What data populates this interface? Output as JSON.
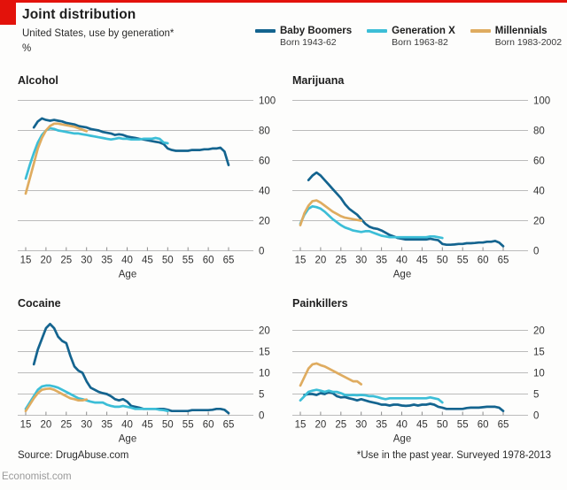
{
  "header": {
    "title": "Joint distribution",
    "subtitle": "United States, use by generation*",
    "unit_label": "%"
  },
  "legend": [
    {
      "name": "Baby Boomers",
      "born": "Born 1943-62",
      "color": "#14648F"
    },
    {
      "name": "Generation X",
      "born": "Born 1963-82",
      "color": "#3CBED7"
    },
    {
      "name": "Millennials",
      "born": "Born 1983-2002",
      "color": "#DFAC60"
    }
  ],
  "colors": {
    "accent_red": "#E3120B",
    "grid": "#BBBBBB",
    "axis": "#8C8C8C",
    "text": "#1E1E1E"
  },
  "footer": {
    "source": "Source: DrugAbuse.com",
    "note": "*Use in the past year. Surveyed 1978-2013",
    "site": "Economist.com"
  },
  "chart_data": [
    {
      "type": "line",
      "title": "Alcohol",
      "xlabel": "Age",
      "xlim": [
        15,
        70
      ],
      "ylim": [
        0,
        100
      ],
      "xticks": [
        15,
        20,
        25,
        30,
        35,
        40,
        45,
        50,
        55,
        60,
        65
      ],
      "yticks": [
        0,
        20,
        40,
        60,
        80,
        100
      ],
      "grid": true,
      "legend_position": "top-right-shared",
      "series": [
        {
          "name": "Baby Boomers",
          "start_age": 17,
          "values": [
            82,
            86,
            88,
            87,
            86.5,
            87,
            86.5,
            86,
            85,
            84.5,
            84,
            83,
            82.5,
            82,
            81,
            80.5,
            80,
            79,
            78.5,
            78,
            77,
            77.5,
            77,
            76,
            75.5,
            75,
            74.5,
            74,
            73.5,
            73,
            72.5,
            72,
            71,
            68,
            67,
            66.5,
            66.5,
            66.5,
            66.5,
            67,
            67,
            67,
            67.5,
            67.5,
            68,
            68,
            68.5,
            66,
            57
          ]
        },
        {
          "name": "Generation X",
          "start_age": 15,
          "values": [
            48,
            57,
            65,
            72,
            77,
            80,
            81.5,
            81,
            80,
            79.5,
            79,
            78.5,
            78,
            78,
            77.5,
            77,
            76.5,
            76,
            75.5,
            75,
            74.5,
            74,
            74.5,
            75,
            74.5,
            74.5,
            74,
            74,
            74,
            74.5,
            74.5,
            74.5,
            75,
            74.5,
            72,
            71.5
          ]
        },
        {
          "name": "Millennials",
          "start_age": 15,
          "values": [
            38,
            48,
            58,
            68,
            75,
            80,
            83,
            84.5,
            84.5,
            84,
            83.5,
            83,
            82.5,
            81.5,
            80.5,
            79.5
          ]
        }
      ]
    },
    {
      "type": "line",
      "title": "Marijuana",
      "xlabel": "Age",
      "xlim": [
        15,
        70
      ],
      "ylim": [
        0,
        100
      ],
      "xticks": [
        15,
        20,
        25,
        30,
        35,
        40,
        45,
        50,
        55,
        60,
        65
      ],
      "yticks": [
        0,
        20,
        40,
        60,
        80,
        100
      ],
      "grid": true,
      "legend_position": "top-right-shared",
      "series": [
        {
          "name": "Baby Boomers",
          "start_age": 17,
          "values": [
            47,
            50,
            52,
            50,
            47,
            44,
            41,
            38,
            35,
            31,
            28,
            26,
            24,
            21,
            18,
            16,
            15,
            14.5,
            13.5,
            12,
            10.5,
            9.5,
            8.5,
            8,
            7.5,
            7.5,
            7.5,
            7.5,
            7.5,
            7.5,
            8,
            7.5,
            7,
            4.5,
            4,
            4,
            4.2,
            4.5,
            4.5,
            5,
            5,
            5.2,
            5.5,
            5.5,
            6,
            6,
            6.5,
            5.5,
            3
          ]
        },
        {
          "name": "Generation X",
          "start_age": 15,
          "values": [
            18,
            24,
            28,
            29.5,
            29,
            28,
            26,
            23.5,
            21,
            19,
            17,
            15.5,
            14.5,
            13.5,
            13,
            12.5,
            13,
            13,
            12,
            11,
            10,
            9.5,
            9,
            9,
            9,
            9,
            9,
            9,
            9,
            9,
            9,
            9,
            9.5,
            9.5,
            9,
            8.5
          ]
        },
        {
          "name": "Millennials",
          "start_age": 15,
          "values": [
            17,
            25,
            30,
            33,
            33.5,
            32,
            30,
            28,
            26,
            24.5,
            23,
            22,
            21.5,
            21,
            20.5,
            20
          ]
        }
      ]
    },
    {
      "type": "line",
      "title": "Cocaine",
      "xlabel": "Age",
      "xlim": [
        15,
        70
      ],
      "ylim": [
        0,
        22
      ],
      "xticks": [
        15,
        20,
        25,
        30,
        35,
        40,
        45,
        50,
        55,
        60,
        65
      ],
      "yticks": [
        0,
        5,
        10,
        15,
        20
      ],
      "grid": true,
      "legend_position": "top-right-shared",
      "series": [
        {
          "name": "Baby Boomers",
          "start_age": 17,
          "values": [
            12,
            15.5,
            18,
            20.5,
            21.5,
            20.5,
            18.5,
            17.5,
            17,
            14,
            11.5,
            10.5,
            10,
            8,
            6.5,
            6,
            5.5,
            5.2,
            5,
            4.5,
            3.8,
            3.5,
            3.8,
            3.2,
            2.2,
            2,
            1.8,
            1.5,
            1.5,
            1.5,
            1.5,
            1.5,
            1.5,
            1.3,
            1,
            1,
            1,
            1,
            1,
            1.2,
            1.2,
            1.2,
            1.2,
            1.2,
            1.3,
            1.5,
            1.5,
            1.3,
            0.5
          ]
        },
        {
          "name": "Generation X",
          "start_age": 15,
          "values": [
            1.5,
            3,
            4.5,
            6,
            6.8,
            7,
            7,
            6.8,
            6.5,
            6,
            5.5,
            5,
            4.5,
            4,
            3.8,
            3.5,
            3.2,
            3,
            3,
            3,
            2.5,
            2.2,
            2,
            2,
            2.2,
            2,
            1.8,
            1.5,
            1.5,
            1.5,
            1.5,
            1.5,
            1.5,
            1.3,
            1.2,
            1
          ]
        },
        {
          "name": "Millennials",
          "start_age": 15,
          "values": [
            1,
            2.5,
            4,
            5.2,
            6,
            6.2,
            6.3,
            6,
            5.5,
            5,
            4.5,
            4,
            3.8,
            3.5,
            3.5,
            3.7
          ]
        }
      ]
    },
    {
      "type": "line",
      "title": "Painkillers",
      "xlabel": "Age",
      "xlim": [
        15,
        70
      ],
      "ylim": [
        0,
        22
      ],
      "xticks": [
        15,
        20,
        25,
        30,
        35,
        40,
        45,
        50,
        55,
        60,
        65
      ],
      "yticks": [
        0,
        5,
        10,
        15,
        20
      ],
      "grid": true,
      "legend_position": "top-right-shared",
      "series": [
        {
          "name": "Baby Boomers",
          "start_age": 16,
          "values": [
            4.8,
            5,
            5,
            4.8,
            5.2,
            5,
            5.5,
            5.2,
            4.5,
            4.2,
            4.3,
            4,
            3.8,
            3.5,
            3.8,
            3.5,
            3.2,
            3,
            2.8,
            2.5,
            2.5,
            2.3,
            2.5,
            2.5,
            2.3,
            2.2,
            2.3,
            2.5,
            2.3,
            2.5,
            2.5,
            2.7,
            2.5,
            2,
            1.8,
            1.5,
            1.5,
            1.5,
            1.5,
            1.5,
            1.7,
            1.8,
            1.8,
            1.8,
            1.9,
            2,
            2,
            2,
            1.8,
            1
          ]
        },
        {
          "name": "Generation X",
          "start_age": 15,
          "values": [
            3.5,
            4.5,
            5.5,
            5.8,
            6,
            5.8,
            5.5,
            5.8,
            5.5,
            5.5,
            5.2,
            4.8,
            4.7,
            4.8,
            4.7,
            4.8,
            4.7,
            4.5,
            4.5,
            4.3,
            4,
            3.8,
            4,
            4,
            4,
            4,
            4,
            4,
            4,
            4,
            4,
            4,
            4.2,
            4,
            3.8,
            3
          ]
        },
        {
          "name": "Millennials",
          "start_age": 15,
          "values": [
            7,
            9,
            11,
            12,
            12.2,
            11.8,
            11.5,
            11,
            10.5,
            10,
            9.5,
            9,
            8.5,
            8,
            8,
            7.3
          ]
        }
      ]
    }
  ]
}
